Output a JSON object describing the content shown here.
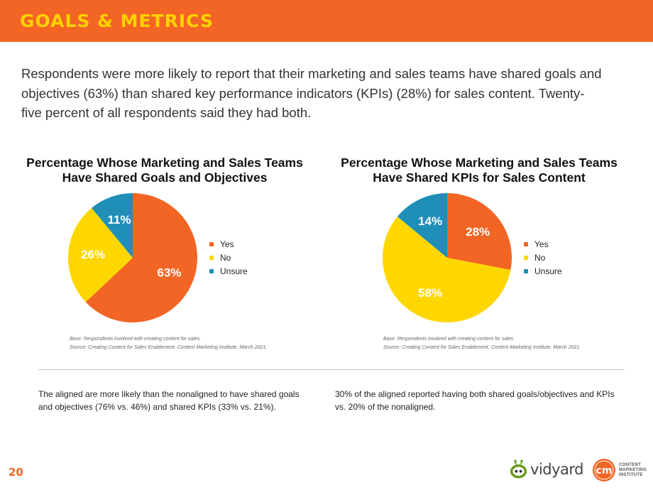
{
  "header": {
    "title": "GOALS & METRICS"
  },
  "intro": "Respondents were more likely to report that their marketing and sales teams have shared goals and objectives (63%) than shared key performance indicators (KPIs) (28%) for sales content. Twenty-five percent of all respondents said they had both.",
  "colors": {
    "brand_orange": "#f26524",
    "header_title": "#ffd200",
    "yes": "#f26524",
    "no": "#ffd700",
    "unsure": "#1f8fb8"
  },
  "chart_data": [
    {
      "type": "pie",
      "title": "Percentage Whose Marketing and Sales Teams Have Shared Goals and Objectives",
      "categories": [
        "Yes",
        "No",
        "Unsure"
      ],
      "values": [
        63,
        26,
        11
      ],
      "value_labels": [
        "63%",
        "26%",
        "11%"
      ],
      "colors": [
        "#f26524",
        "#ffd700",
        "#1f8fb8"
      ],
      "legend": "right",
      "base_note": "Base: Respondents involved with creating content for sales.",
      "source_note": "Source: Creating Content for Sales Enablement. Content Marketing Institute, March 2021."
    },
    {
      "type": "pie",
      "title": "Percentage Whose Marketing and Sales Teams Have Shared KPIs for Sales Content",
      "categories": [
        "Yes",
        "No",
        "Unsure"
      ],
      "values": [
        28,
        58,
        14
      ],
      "value_labels": [
        "28%",
        "58%",
        "14%"
      ],
      "colors": [
        "#f26524",
        "#ffd700",
        "#1f8fb8"
      ],
      "legend": "right",
      "base_note": "Base: Respondents involved with creating content for sales.",
      "source_note": "Source: Creating Content for Sales Enablement. Content Marketing Institute, March 2021."
    }
  ],
  "findings": [
    "The aligned are more likely than the nonaligned to have shared goals and objectives (76% vs. 46%) and shared KPIs (33% vs. 21%).",
    "30% of the aligned reported having both shared goals/objectives and KPIs vs. 20% of the nonaligned."
  ],
  "footer": {
    "page_number": "20",
    "vidyard_logo": "vidyard",
    "cmi_logo_mark": "cm",
    "cmi_logo_lines": [
      "CONTENT",
      "MARKETING",
      "INSTITUTE"
    ]
  }
}
